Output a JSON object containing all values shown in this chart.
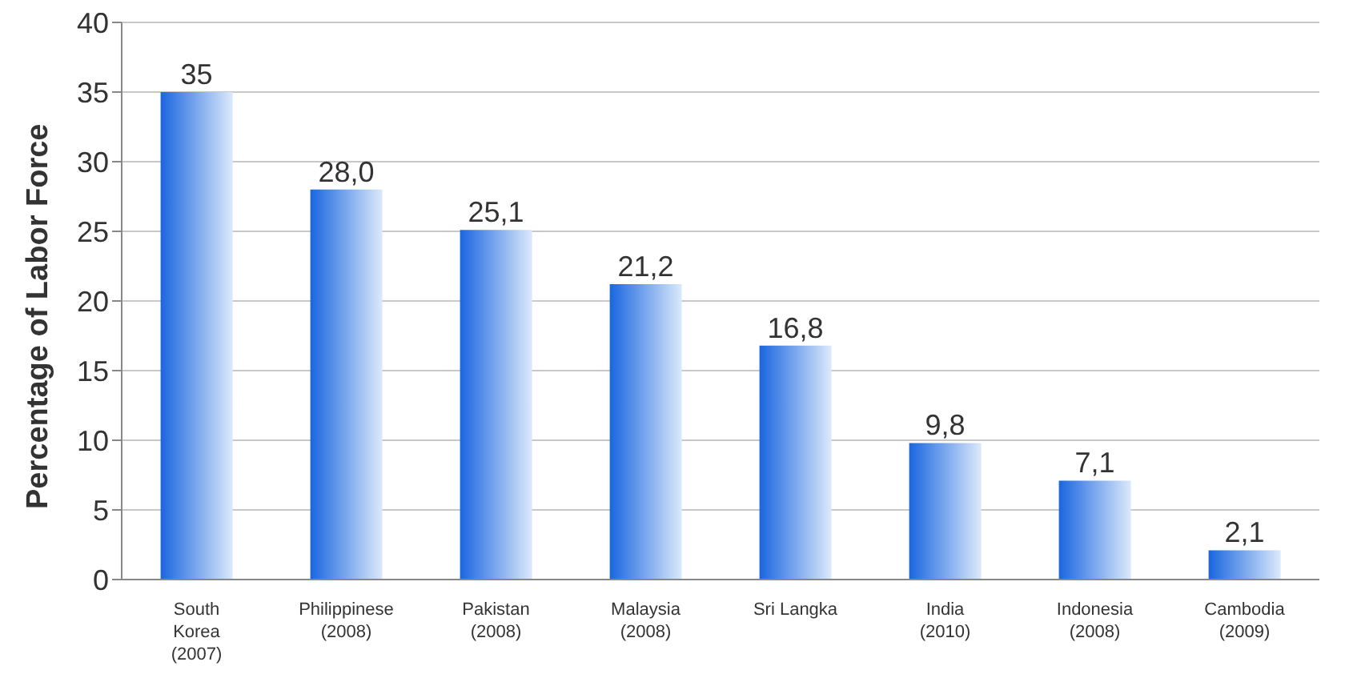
{
  "chart_data": {
    "type": "bar",
    "ylabel": "Percentage of Labor Force",
    "categories": [
      "South\nKorea\n(2007)",
      "Philippinese\n(2008)",
      "Pakistan\n(2008)",
      "Malaysia\n(2008)",
      "Sri Langka",
      "India\n(2010)",
      "Indonesia\n(2008)",
      "Cambodia\n(2009)"
    ],
    "values": [
      35,
      28.0,
      25.1,
      21.2,
      16.8,
      9.8,
      7.1,
      2.1
    ],
    "value_labels": [
      "35",
      "28,0",
      "25,1",
      "21,2",
      "16,8",
      "9,8",
      "7,1",
      "2,1"
    ],
    "color": "#1a66e0",
    "ylim": [
      0,
      40
    ],
    "yticks": [
      0,
      5,
      10,
      15,
      20,
      25,
      30,
      35,
      40
    ],
    "grid": "y"
  }
}
